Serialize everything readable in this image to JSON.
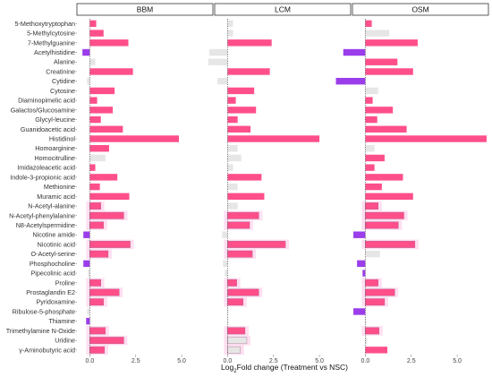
{
  "chart_data": {
    "type": "bar",
    "orientation": "horizontal",
    "facets": [
      "BBM",
      "LCM",
      "OSM"
    ],
    "xlabel": {
      "prefix": "Log",
      "sub": "2",
      "suffix": "Fold change (Treatment vs NSC)"
    },
    "ylabel": "",
    "xlim": [
      -0.7,
      6.7
    ],
    "xticks": [
      0.0,
      2.5,
      5.0
    ],
    "xtick_labels": [
      "0.0",
      "2.5",
      "5.0"
    ],
    "colors": {
      "up": "#ff4f8b",
      "down": "#9b3dea",
      "ns": "#e6e6e6",
      "halo": "#ffd9f0",
      "zero_line": "#555555"
    },
    "categories": [
      "5-Methoxytryptophan",
      "5-Methylcytosine",
      "7-Methylguanine",
      "Acetylhistidine",
      "Alanine",
      "Creatinine",
      "Cytidine",
      "Cytosine",
      "Diaminopimelic acid",
      "Galactos/Glucosamine",
      "Glycyl-leucine",
      "Guanidoacetic acid",
      "Histidinol",
      "Homoarginine",
      "Homocitrulline",
      "Imidazoleacetic acid",
      "Indole-3-propionic acid",
      "Methionine",
      "Muramic acid",
      "N-Acetyl-alanine",
      "N-Acetyl-phenylalanine",
      "N8-Acetylspermidine",
      "Nicotine amide",
      "Nicotinic acid",
      "O-Acetyl-serine",
      "Phosphocholine",
      "Pipecolinic acid",
      "Proline",
      "Prostaglandin E2",
      "Pyridoxamine",
      "Ribulose-5-phosphate",
      "Thiamine",
      "Trimethylamine N-Oxide",
      "Uridine",
      "γ-Aminobutyric acid"
    ],
    "series": [
      {
        "name": "BBM",
        "values": [
          0.35,
          0.75,
          2.1,
          -0.4,
          0.3,
          2.35,
          -0.15,
          1.35,
          0.4,
          1.25,
          0.6,
          1.8,
          4.85,
          1.05,
          0.85,
          0.3,
          1.5,
          0.55,
          2.15,
          0.6,
          1.85,
          0.75,
          -0.35,
          2.2,
          1.0,
          -0.35,
          -0.1,
          0.6,
          1.6,
          0.75,
          -0.15,
          -0.2,
          0.85,
          1.85,
          0.8
        ],
        "status": [
          "up",
          "up",
          "up",
          "down",
          "ns",
          "up",
          "ns",
          "up",
          "up",
          "up",
          "up",
          "up",
          "up",
          "up",
          "ns",
          "up",
          "up",
          "up",
          "up",
          "up",
          "up",
          "up",
          "down",
          "up",
          "up",
          "down",
          "ns",
          "up",
          "up",
          "up",
          "ns",
          "down",
          "up",
          "up",
          "up"
        ],
        "halo": [
          0,
          0,
          0,
          0,
          0,
          0,
          0,
          0,
          0,
          0,
          0,
          0,
          0,
          0,
          0,
          0,
          0,
          0,
          0,
          1,
          1,
          1,
          0,
          1,
          1,
          0,
          0,
          1,
          1,
          1,
          0,
          0,
          1,
          1,
          1
        ]
      },
      {
        "name": "LCM",
        "values": [
          0.3,
          0.3,
          2.4,
          -1.0,
          -1.05,
          2.3,
          -0.55,
          1.45,
          0.45,
          1.55,
          0.55,
          1.25,
          5.0,
          0.55,
          0.75,
          0.3,
          1.85,
          0.55,
          2.0,
          0.55,
          1.7,
          1.2,
          -0.3,
          3.15,
          1.35,
          -0.25,
          -0.15,
          0.5,
          1.7,
          0.85,
          0.0,
          0.0,
          0.95,
          1.05,
          0.7
        ],
        "status": [
          "ns",
          "ns",
          "up",
          "ns",
          "ns",
          "up",
          "ns",
          "up",
          "up",
          "up",
          "up",
          "up",
          "up",
          "ns",
          "ns",
          "ns",
          "up",
          "ns",
          "up",
          "ns",
          "up",
          "up",
          "ns",
          "up",
          "up",
          "ns",
          "ns",
          "up",
          "up",
          "up",
          "ns",
          "ns",
          "up",
          "ns",
          "ns"
        ],
        "halo": [
          0,
          0,
          0,
          0,
          0,
          0,
          0,
          0,
          0,
          0,
          0,
          0,
          0,
          0,
          0,
          0,
          0,
          0,
          0,
          0,
          1,
          1,
          0,
          1,
          1,
          0,
          0,
          1,
          1,
          1,
          0,
          0,
          1,
          1,
          1
        ]
      },
      {
        "name": "OSM",
        "values": [
          0.35,
          1.3,
          2.85,
          -1.2,
          1.75,
          2.6,
          -1.6,
          0.7,
          0.4,
          1.5,
          0.65,
          2.25,
          6.6,
          0.5,
          1.05,
          0.5,
          2.05,
          0.9,
          2.6,
          0.7,
          2.1,
          1.8,
          -0.65,
          2.7,
          0.8,
          -0.45,
          -0.15,
          0.7,
          1.6,
          1.05,
          -0.65,
          0.05,
          0.75,
          0.1,
          1.2
        ],
        "status": [
          "up",
          "ns",
          "up",
          "down",
          "up",
          "up",
          "down",
          "ns",
          "up",
          "up",
          "up",
          "up",
          "up",
          "ns",
          "up",
          "up",
          "up",
          "up",
          "up",
          "up",
          "up",
          "up",
          "down",
          "up",
          "ns",
          "down",
          "down",
          "up",
          "up",
          "up",
          "down",
          "ns",
          "up",
          "ns",
          "up"
        ],
        "halo": [
          0,
          0,
          0,
          0,
          0,
          0,
          0,
          0,
          0,
          0,
          0,
          0,
          0,
          0,
          0,
          0,
          0,
          0,
          0,
          1,
          1,
          1,
          0,
          1,
          0,
          0,
          0,
          1,
          1,
          1,
          0,
          0,
          1,
          0,
          0
        ]
      }
    ]
  }
}
